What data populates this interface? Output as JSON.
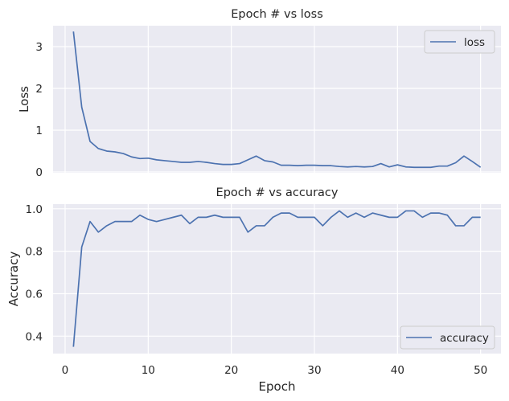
{
  "chart_data": [
    {
      "type": "line",
      "title": "Epoch # vs loss",
      "xlabel": "",
      "ylabel": "Loss",
      "xlim": [
        -1.45,
        52.45
      ],
      "ylim": [
        -0.02,
        3.5
      ],
      "xticks": [
        0,
        10,
        20,
        30,
        40,
        50
      ],
      "xtick_labels": [
        "",
        "",
        "",
        "",
        "",
        ""
      ],
      "yticks": [
        0,
        1,
        2,
        3
      ],
      "ytick_labels": [
        "0",
        "1",
        "2",
        "3"
      ],
      "grid": true,
      "legend": "top-right",
      "x": [
        1,
        2,
        3,
        4,
        5,
        6,
        7,
        8,
        9,
        10,
        11,
        12,
        13,
        14,
        15,
        16,
        17,
        18,
        19,
        20,
        21,
        22,
        23,
        24,
        25,
        26,
        27,
        28,
        29,
        30,
        31,
        32,
        33,
        34,
        35,
        36,
        37,
        38,
        39,
        40,
        41,
        42,
        43,
        44,
        45,
        46,
        47,
        48,
        49,
        50
      ],
      "series": [
        {
          "name": "loss",
          "color": "#4c72b0",
          "values": [
            3.36,
            1.55,
            0.73,
            0.56,
            0.5,
            0.48,
            0.44,
            0.36,
            0.32,
            0.33,
            0.29,
            0.27,
            0.25,
            0.23,
            0.23,
            0.25,
            0.23,
            0.2,
            0.18,
            0.18,
            0.2,
            0.29,
            0.38,
            0.27,
            0.24,
            0.16,
            0.16,
            0.15,
            0.16,
            0.16,
            0.15,
            0.15,
            0.13,
            0.12,
            0.13,
            0.12,
            0.13,
            0.2,
            0.12,
            0.17,
            0.12,
            0.11,
            0.11,
            0.11,
            0.14,
            0.14,
            0.22,
            0.38,
            0.25,
            0.11
          ]
        }
      ]
    },
    {
      "type": "line",
      "title": "Epoch # vs accuracy",
      "xlabel": "Epoch",
      "ylabel": "Accuracy",
      "xlim": [
        -1.45,
        52.45
      ],
      "ylim": [
        0.318,
        1.022
      ],
      "xticks": [
        0,
        10,
        20,
        30,
        40,
        50
      ],
      "xtick_labels": [
        "0",
        "10",
        "20",
        "30",
        "40",
        "50"
      ],
      "yticks": [
        0.4,
        0.6,
        0.8,
        1.0
      ],
      "ytick_labels": [
        "0.4",
        "0.6",
        "0.8",
        "1.0"
      ],
      "grid": true,
      "legend": "bottom-right",
      "x": [
        1,
        2,
        3,
        4,
        5,
        6,
        7,
        8,
        9,
        10,
        11,
        12,
        13,
        14,
        15,
        16,
        17,
        18,
        19,
        20,
        21,
        22,
        23,
        24,
        25,
        26,
        27,
        28,
        29,
        30,
        31,
        32,
        33,
        34,
        35,
        36,
        37,
        38,
        39,
        40,
        41,
        42,
        43,
        44,
        45,
        46,
        47,
        48,
        49,
        50
      ],
      "series": [
        {
          "name": "accuracy",
          "color": "#4c72b0",
          "values": [
            0.35,
            0.82,
            0.94,
            0.89,
            0.92,
            0.94,
            0.94,
            0.94,
            0.97,
            0.95,
            0.94,
            0.95,
            0.96,
            0.97,
            0.93,
            0.96,
            0.96,
            0.97,
            0.96,
            0.96,
            0.96,
            0.89,
            0.92,
            0.92,
            0.96,
            0.98,
            0.98,
            0.96,
            0.96,
            0.96,
            0.92,
            0.96,
            0.99,
            0.96,
            0.98,
            0.96,
            0.98,
            0.97,
            0.96,
            0.96,
            0.99,
            0.99,
            0.96,
            0.98,
            0.98,
            0.97,
            0.92,
            0.92,
            0.96,
            0.96
          ]
        }
      ]
    }
  ]
}
